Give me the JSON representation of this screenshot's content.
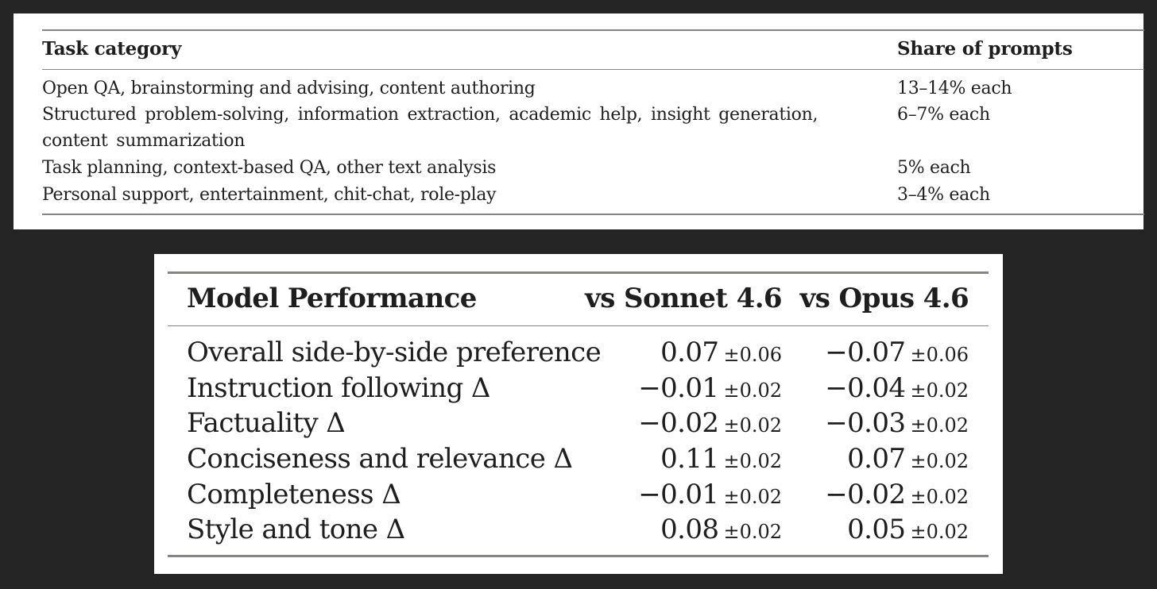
{
  "task_table": {
    "headers": {
      "category": "Task category",
      "share": "Share of prompts"
    },
    "rows": [
      {
        "category": "Open QA, brainstorming and advising, content authoring",
        "share": "13–14% each"
      },
      {
        "category": "Structured problem-solving, information extraction, academic help, insight generation, content summarization",
        "share": "6–7% each"
      },
      {
        "category": "Task planning, context-based QA, other text analysis",
        "share": "5% each"
      },
      {
        "category": "Personal support, entertainment, chit-chat, role-play",
        "share": "3–4% each"
      }
    ]
  },
  "performance_table": {
    "headers": {
      "label": "Model Performance",
      "col1": "vs Sonnet 4.6",
      "col2": "vs Opus 4.6"
    },
    "rows": [
      {
        "label": "Overall side-by-side preference",
        "col1_value": "0.07",
        "col1_error": "±0.06",
        "col2_value": "−0.07",
        "col2_error": "±0.06"
      },
      {
        "label": "Instruction following Δ",
        "col1_value": "−0.01",
        "col1_error": "±0.02",
        "col2_value": "−0.04",
        "col2_error": "±0.02"
      },
      {
        "label": "Factuality Δ",
        "col1_value": "−0.02",
        "col1_error": "±0.02",
        "col2_value": "−0.03",
        "col2_error": "±0.02"
      },
      {
        "label": "Conciseness and relevance Δ",
        "col1_value": "0.11",
        "col1_error": "±0.02",
        "col2_value": "0.07",
        "col2_error": "±0.02"
      },
      {
        "label": "Completeness Δ",
        "col1_value": "−0.01",
        "col1_error": "±0.02",
        "col2_value": "−0.02",
        "col2_error": "±0.02"
      },
      {
        "label": "Style and tone Δ",
        "col1_value": "0.08",
        "col1_error": "±0.02",
        "col2_value": "0.05",
        "col2_error": "±0.02"
      }
    ]
  }
}
